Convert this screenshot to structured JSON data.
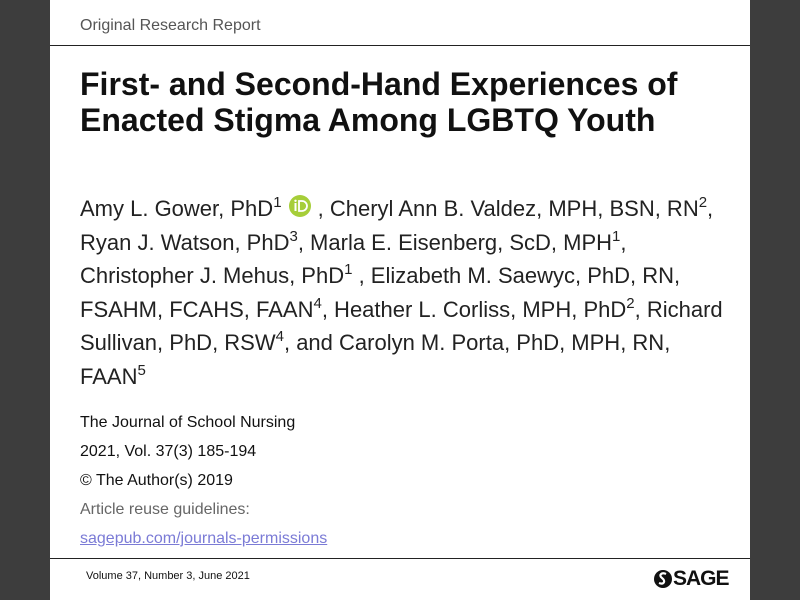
{
  "header": {
    "section": "Original Research Report"
  },
  "article": {
    "title": "First- and Second-Hand Experiences of Enacted Stigma Among LGBTQ Youth",
    "authors": [
      {
        "text": "Amy L. Gower, PhD",
        "sup": "1",
        "orcid": true
      },
      {
        "text": " , Cheryl Ann B. Valdez, MPH, BSN, RN",
        "sup": "2"
      },
      {
        "text": ", Ryan J. Watson, PhD",
        "sup": "3"
      },
      {
        "text": ", Marla E. Eisenberg, ScD, MPH",
        "sup": "1"
      },
      {
        "text": ", Christopher J. Mehus, PhD",
        "sup": "1"
      },
      {
        "text": " , Elizabeth M. Saewyc, PhD, RN, FSAHM, FCAHS, FAAN",
        "sup": "4"
      },
      {
        "text": ", Heather L. Corliss, MPH, PhD",
        "sup": "2"
      },
      {
        "text": ", Richard Sullivan, PhD, RSW",
        "sup": "4"
      },
      {
        "text": ", and Carolyn M. Porta, PhD, MPH, RN, FAAN",
        "sup": "5"
      }
    ],
    "journal": [
      "The Journal of School Nursing",
      "2021, Vol. 37(3) 185-194",
      "© The Author(s) 2019"
    ],
    "reuse_label": "Article reuse guidelines:",
    "reuse_link": "sagepub.com/journals-permissions"
  },
  "footer": {
    "issue": "Volume 37, Number 3, June 2021",
    "publisher": "SAGE"
  }
}
